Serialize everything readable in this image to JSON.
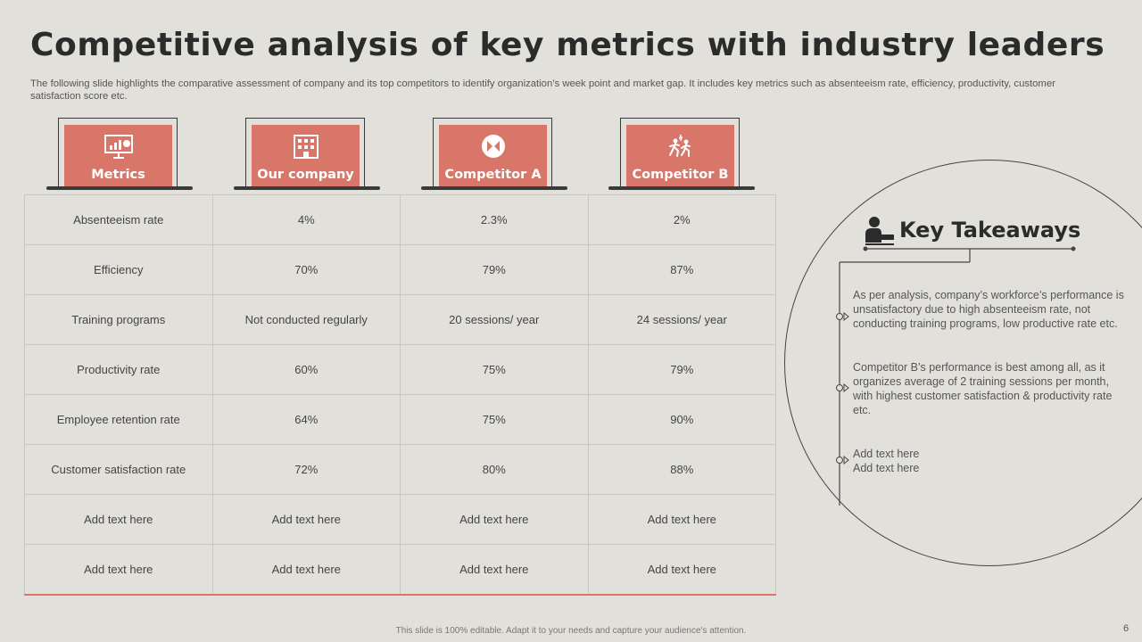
{
  "title": "Competitive analysis of key metrics with industry leaders",
  "subtitle": "The following slide highlights the comparative assessment of company and its top competitors to identify organization’s week point and market gap. It includes key metrics such as absenteeism rate, efficiency, productivity, customer satisfaction score etc.",
  "headers": [
    {
      "label": "Metrics",
      "icon": "presentation-chart-icon"
    },
    {
      "label": "Our company",
      "icon": "building-icon"
    },
    {
      "label": "Competitor A",
      "icon": "versus-icon"
    },
    {
      "label": "Competitor B",
      "icon": "race-icon"
    }
  ],
  "rows": [
    [
      "Absenteeism rate",
      "4%",
      "2.3%",
      "2%"
    ],
    [
      "Efficiency",
      "70%",
      "79%",
      "87%"
    ],
    [
      "Training  programs",
      "Not conducted regularly",
      "20 sessions/ year",
      "24 sessions/ year"
    ],
    [
      "Productivity rate",
      "60%",
      "75%",
      "79%"
    ],
    [
      "Employee  retention rate",
      "64%",
      "75%",
      "90%"
    ],
    [
      "Customer satisfaction rate",
      "72%",
      "80%",
      "88%"
    ],
    [
      "Add text here",
      "Add text here",
      "Add text here",
      "Add text here"
    ],
    [
      "Add text here",
      "Add text here",
      "Add text here",
      "Add text here"
    ]
  ],
  "takeaways": {
    "title": "Key Takeaways",
    "icon": "presenter-icon",
    "items": [
      "As per analysis, company’s workforce’s performance  is unsatisfactory due to high absenteeism rate, not conducting training programs, low productive rate etc.",
      "Competitor B’s performance  is best among all, as it organizes average  of 2 training sessions per month, with highest customer satisfaction & productivity rate etc.",
      "Add text here\nAdd text here"
    ]
  },
  "footer": "This slide is 100% editable.  Adapt it to your needs and capture your audience's attention.",
  "page_number": "6",
  "colors": {
    "accent": "#d8766a",
    "background": "#e2e0da",
    "dark": "#3a3a3a"
  }
}
